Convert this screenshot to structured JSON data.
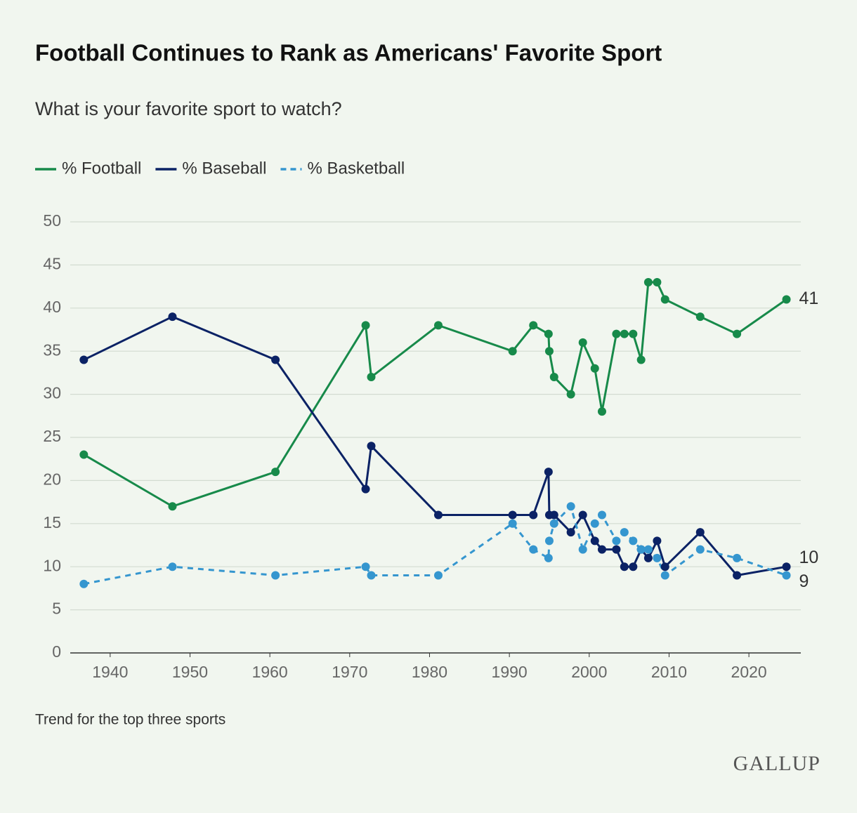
{
  "chart_data": {
    "type": "line",
    "title": "Football Continues to Rank as Americans' Favorite Sport",
    "subtitle": "What is your favorite sport to watch?",
    "x": [
      1936.7,
      1947.8,
      1960.7,
      1972.0,
      1972.7,
      1981.1,
      1990.4,
      1993.0,
      1994.9,
      1995.0,
      1995.6,
      1997.7,
      1999.2,
      2000.7,
      2001.6,
      2003.4,
      2004.4,
      2005.5,
      2006.5,
      2007.4,
      2008.5,
      2009.5,
      2013.9,
      2018.5,
      2024.7
    ],
    "series": [
      {
        "name": "% Football",
        "color": "#178a4a",
        "style": "solid",
        "values": [
          23,
          17,
          21,
          38,
          32,
          38,
          35,
          38,
          37,
          35,
          32,
          30,
          36,
          33,
          28,
          37,
          37,
          37,
          34,
          43,
          43,
          41,
          39,
          37,
          41
        ]
      },
      {
        "name": "% Baseball",
        "color": "#0b2265",
        "style": "solid",
        "values": [
          34,
          39,
          34,
          19,
          24,
          16,
          16,
          16,
          21,
          16,
          16,
          14,
          16,
          13,
          12,
          12,
          10,
          10,
          12,
          11,
          13,
          10,
          14,
          9,
          10
        ]
      },
      {
        "name": "% Basketball",
        "color": "#3596cf",
        "style": "dashed",
        "values": [
          8,
          10,
          9,
          10,
          9,
          9,
          15,
          12,
          11,
          13,
          15,
          17,
          12,
          15,
          16,
          13,
          14,
          13,
          12,
          12,
          11,
          9,
          12,
          11,
          9
        ]
      }
    ],
    "xlim": [
      1935,
      2026.5
    ],
    "xticks": [
      1940,
      1950,
      1960,
      1970,
      1980,
      1990,
      2000,
      2010,
      2020
    ],
    "ylim": [
      0,
      50
    ],
    "yticks": [
      0,
      5,
      10,
      15,
      20,
      25,
      30,
      35,
      40,
      45,
      50
    ],
    "grid": true,
    "legend": "top-left",
    "note": "Trend for the top three sports",
    "source": "GALLUP"
  }
}
